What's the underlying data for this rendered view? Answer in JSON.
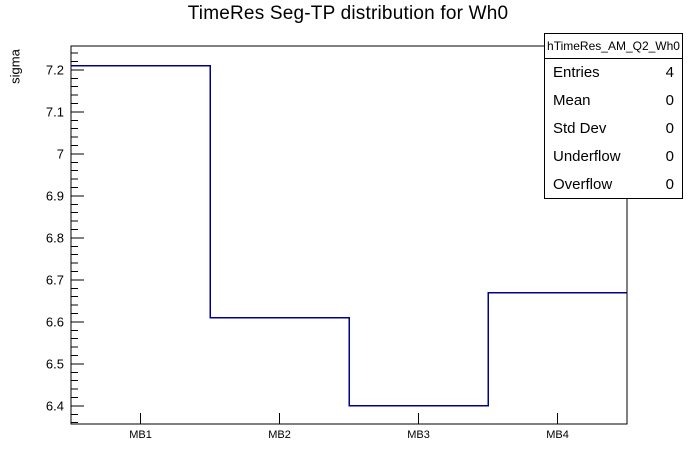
{
  "title": "TimeRes Seg-TP distribution for Wh0",
  "stats_box": {
    "header": "hTimeRes_AM_Q2_Wh0",
    "rows": [
      {
        "label": "Entries",
        "value": "4"
      },
      {
        "label": "Mean",
        "value": "0"
      },
      {
        "label": "Std Dev",
        "value": "0"
      },
      {
        "label": "Underflow",
        "value": "0"
      },
      {
        "label": "Overflow",
        "value": "0"
      }
    ]
  },
  "chart_data": {
    "type": "line",
    "style": "step-histogram",
    "title": "TimeRes Seg-TP distribution for Wh0",
    "xlabel": "",
    "ylabel": "sigma",
    "categories": [
      "MB1",
      "MB2",
      "MB3",
      "MB4"
    ],
    "values": [
      7.21,
      6.61,
      6.4,
      6.67
    ],
    "ylim": [
      6.357,
      7.257
    ],
    "y_major_ticks": [
      6.4,
      6.5,
      6.6,
      6.7,
      6.8,
      6.9,
      7.0,
      7.1,
      7.2
    ],
    "y_tick_labels": [
      "6.4",
      "6.5",
      "6.6",
      "6.7",
      "6.8",
      "6.9",
      "7",
      "7.1",
      "7.2"
    ],
    "y_minor_step": 0.02,
    "grid": false,
    "legend_position": "none",
    "line_color": "#00008b",
    "frame_color": "#000000",
    "background_color": "#ffffff"
  }
}
